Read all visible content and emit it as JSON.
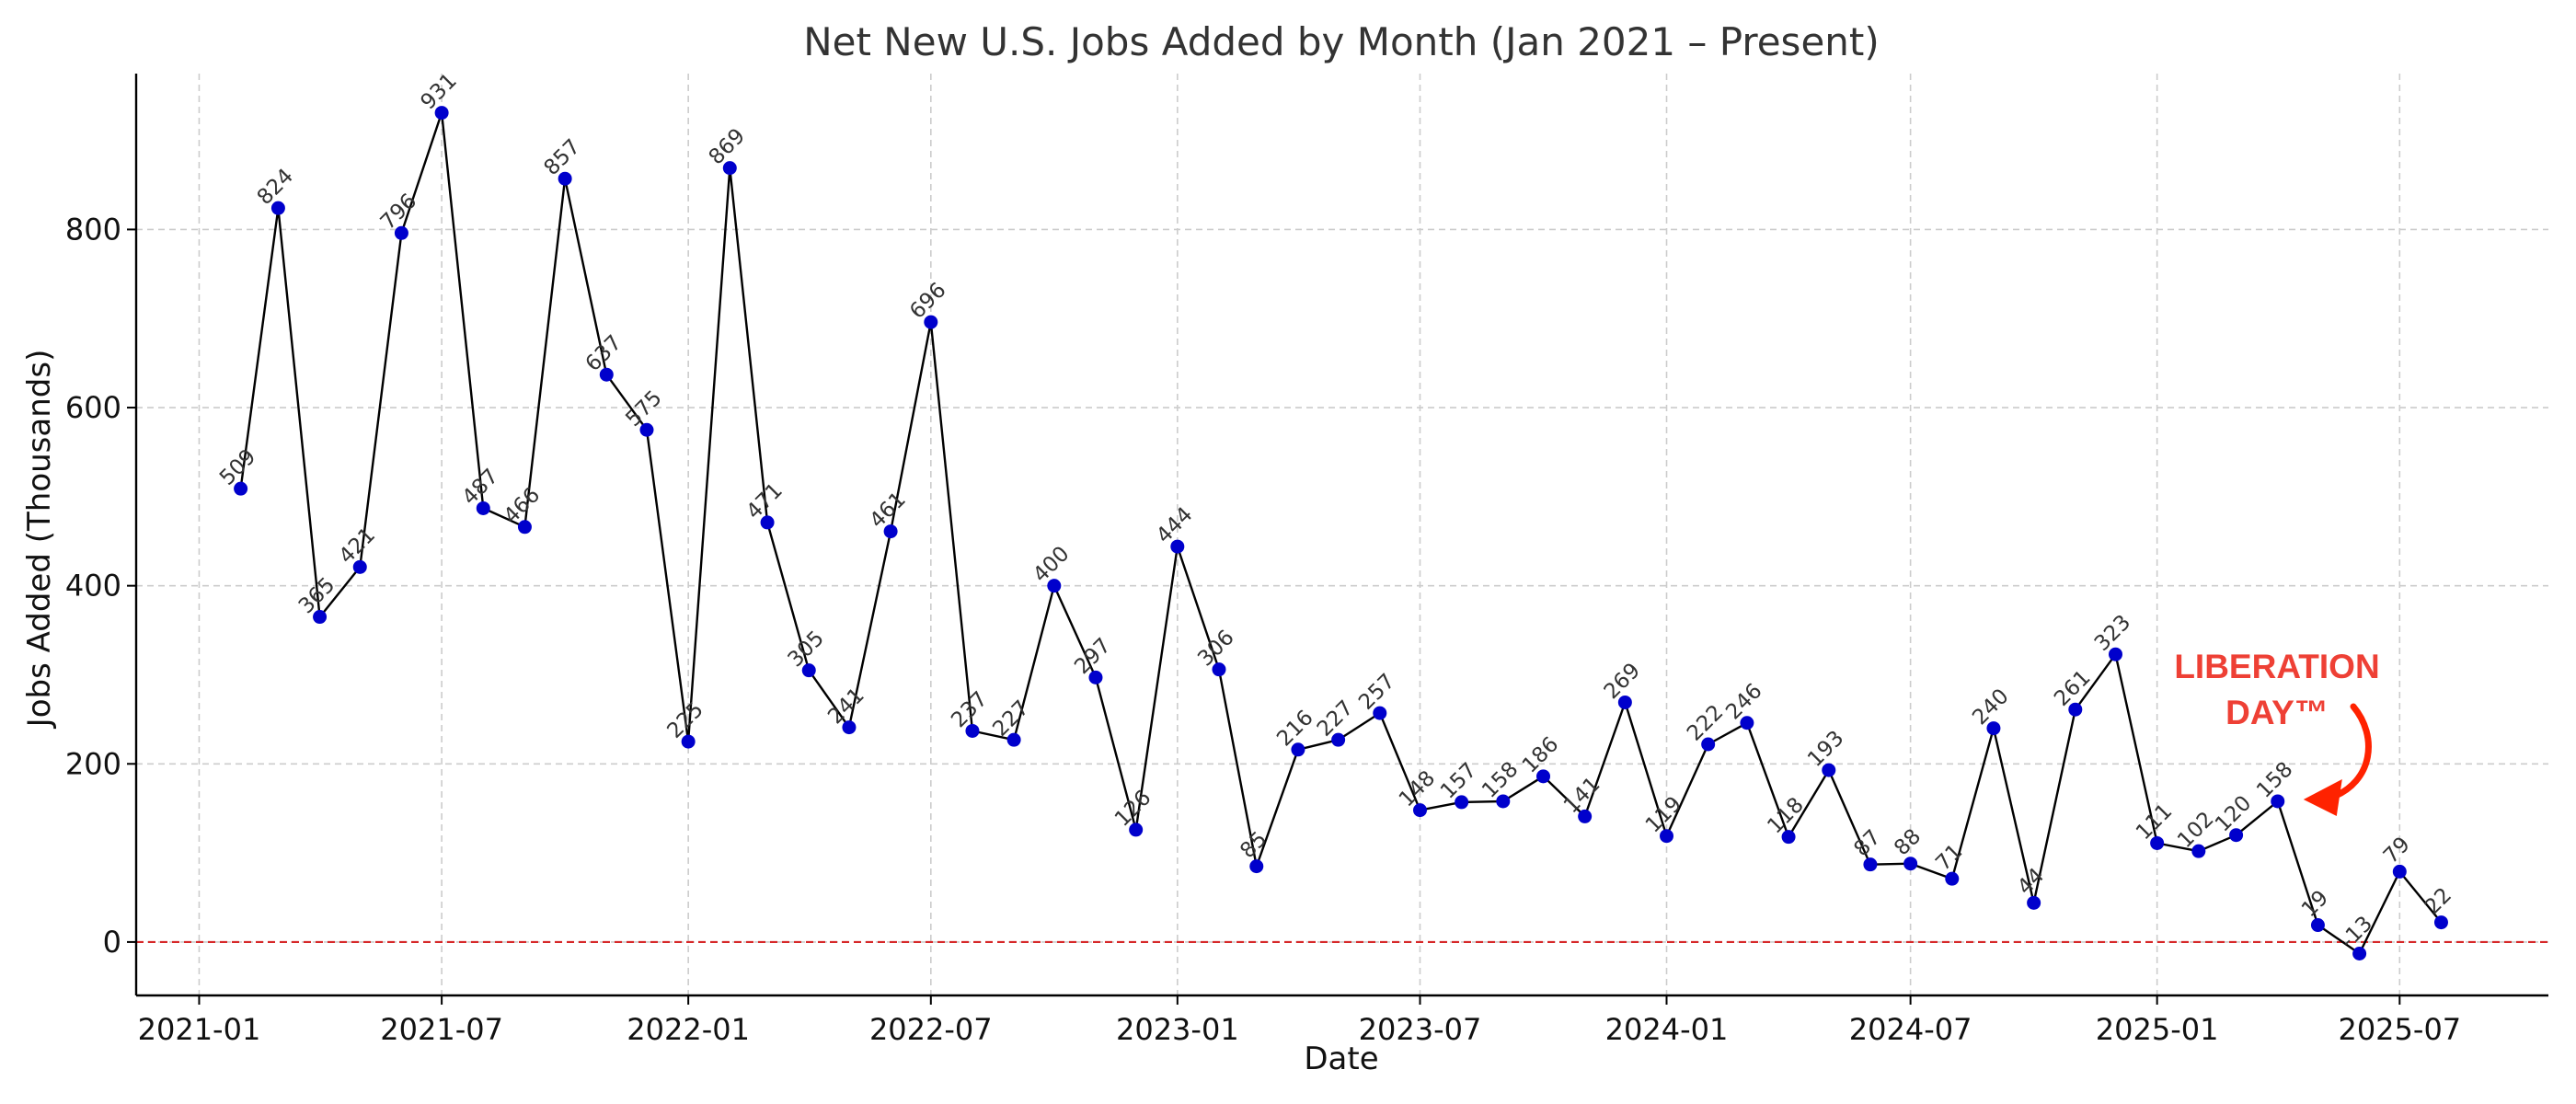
{
  "chart_data": {
    "type": "line",
    "title": "Net New U.S. Jobs Added by Month (Jan 2021 – Present)",
    "xlabel": "Date",
    "ylabel": "Jobs Added (Thousands)",
    "x_ticks": [
      "2021-01",
      "2021-07",
      "2022-01",
      "2022-07",
      "2023-01",
      "2023-07",
      "2024-01",
      "2024-07",
      "2025-01",
      "2025-07"
    ],
    "y_ticks": [
      0,
      200,
      400,
      600,
      800
    ],
    "ylim": [
      -60,
      975
    ],
    "xlim": [
      "2020-11-15",
      "2025-10-20"
    ],
    "grid": true,
    "reference_line": {
      "y": 0,
      "color": "#d62728",
      "style": "dashed"
    },
    "series": [
      {
        "x": [
          "2021-02",
          "2021-03",
          "2021-04",
          "2021-05",
          "2021-06",
          "2021-07",
          "2021-08",
          "2021-09",
          "2021-10",
          "2021-11",
          "2021-12",
          "2022-01",
          "2022-02",
          "2022-03",
          "2022-04",
          "2022-05",
          "2022-06",
          "2022-07",
          "2022-08",
          "2022-09",
          "2022-10",
          "2022-11",
          "2022-12",
          "2023-01",
          "2023-02",
          "2023-03",
          "2023-04",
          "2023-05",
          "2023-06",
          "2023-07",
          "2023-08",
          "2023-09",
          "2023-10",
          "2023-11",
          "2023-12",
          "2024-01",
          "2024-02",
          "2024-03",
          "2024-04",
          "2024-05",
          "2024-06",
          "2024-07",
          "2024-08",
          "2024-09",
          "2024-10",
          "2024-11",
          "2024-12",
          "2025-01",
          "2025-02",
          "2025-03",
          "2025-04",
          "2025-05",
          "2025-06",
          "2025-07",
          "2025-08"
        ],
        "values": [
          509,
          824,
          365,
          421,
          796,
          931,
          487,
          466,
          857,
          637,
          575,
          225,
          869,
          471,
          305,
          241,
          461,
          696,
          237,
          227,
          400,
          297,
          126,
          444,
          306,
          85,
          216,
          227,
          257,
          148,
          157,
          158,
          186,
          141,
          269,
          119,
          222,
          246,
          118,
          193,
          87,
          88,
          71,
          240,
          44,
          261,
          323,
          111,
          102,
          120,
          158,
          19,
          -13,
          79,
          22
        ],
        "line_color": "#000000",
        "marker_color": "#0000cc"
      }
    ],
    "annotations": [
      {
        "text_lines": [
          "LIBERATION",
          "DAY™"
        ],
        "color": "#ee4035",
        "target": "2025-04",
        "arrow_color": "#ff2200"
      }
    ]
  }
}
